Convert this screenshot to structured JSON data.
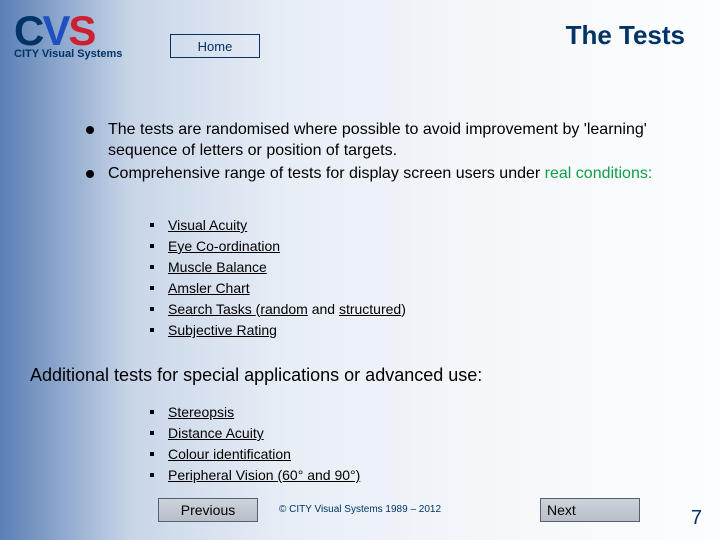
{
  "logo": {
    "c": "C",
    "v": "V",
    "s": "S",
    "subtitle": "CITY Visual Systems"
  },
  "home_label": "Home",
  "title": "The Tests",
  "bullets": {
    "b1": "The tests are randomised where possible to avoid improvement by 'learning' sequence of letters or position of targets.",
    "b2_prefix": "Comprehensive range of tests for display screen users under ",
    "b2_real": "real conditions",
    "b2_colon": ":"
  },
  "tests1": {
    "t0": "Visual Acuity",
    "t1": "Eye Co-ordination",
    "t2": "Muscle Balance",
    "t3": "Amsler Chart",
    "t4_a": "Search Tasks ",
    "t4_b": "(",
    "t4_c": "random",
    "t4_d": " and ",
    "t4_e": "structured",
    "t4_f": ")",
    "t5": "Subjective Rating"
  },
  "additional_heading": "Additional tests for special applications or advanced use:",
  "tests2": {
    "t0": "Stereopsis",
    "t1": "Distance Acuity",
    "t2": "Colour identification",
    "t3": "Peripheral Vision (60° and 90°)"
  },
  "footer": {
    "prev": "Previous",
    "next": "Next",
    "copyright": "© CITY Visual Systems 1989 – 2012",
    "page": "7"
  }
}
